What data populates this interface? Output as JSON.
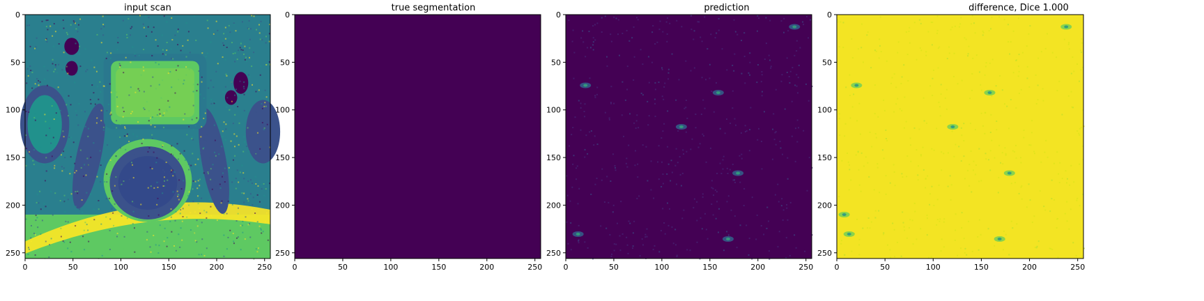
{
  "figure": {
    "panels": [
      {
        "title": "input scan",
        "kind": "mri"
      },
      {
        "title": "true segmentation",
        "kind": "flat"
      },
      {
        "title": "prediction",
        "kind": "prediction"
      },
      {
        "title": "difference, Dice 1.000",
        "kind": "difference"
      }
    ],
    "x_ticks": [
      "0",
      "50",
      "100",
      "150",
      "200",
      "250"
    ],
    "y_ticks": [
      "0",
      "50",
      "100",
      "150",
      "200",
      "250"
    ],
    "extent": [
      0,
      256
    ],
    "colormap": "viridis",
    "colors": {
      "viridis_dark": "#440154",
      "viridis_mid": "#21918c",
      "viridis_bright": "#fde725",
      "prediction_bg": "#440154",
      "difference_bg": "#f3e423"
    }
  }
}
